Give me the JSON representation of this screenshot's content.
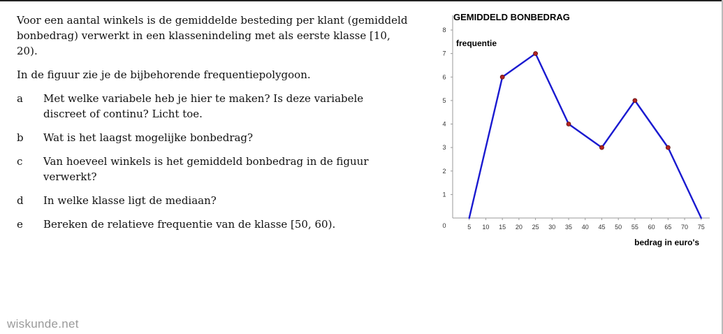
{
  "intro": "Voor een aantal winkels is de gemiddelde besteding per klant (gemiddeld bonbedrag) verwerkt in een klassenindeling met als eerste klasse [10, 20).",
  "figure_text": "In de figuur zie je de bijbehorende frequentiepolygoon.",
  "questions": [
    {
      "letter": "a",
      "text": "Met welke variabele heb je hier te maken? Is deze variabele discreet of continu? Licht toe."
    },
    {
      "letter": "b",
      "text": "Wat is het laagst mogelijke bonbedrag?"
    },
    {
      "letter": "c",
      "text": "Van hoeveel winkels is het gemiddeld bonbedrag in de figuur verwerkt?"
    },
    {
      "letter": "d",
      "text": "In welke klasse ligt de mediaan?"
    },
    {
      "letter": "e",
      "text": "Bereken de relatieve frequentie van de klasse [50, 60)."
    }
  ],
  "logo": "wiskunde.net",
  "chart_data": {
    "type": "line",
    "title": "GEMIDDELD BONBEDRAG",
    "ylabel": "frequentie",
    "xlabel": "bedrag in euro's",
    "x": [
      5,
      15,
      25,
      35,
      45,
      55,
      65,
      75
    ],
    "y": [
      0,
      6,
      7,
      4,
      3,
      5,
      3,
      0
    ],
    "xticks": [
      0,
      5,
      10,
      15,
      20,
      25,
      30,
      35,
      40,
      45,
      50,
      55,
      60,
      65,
      70,
      75
    ],
    "yticks": [
      1,
      2,
      3,
      4,
      5,
      6,
      7,
      8
    ],
    "xlim": [
      0,
      78
    ],
    "ylim": [
      0,
      8
    ],
    "line_color": "#1a1ad0",
    "marker_color": "#b22222",
    "grid": false
  }
}
